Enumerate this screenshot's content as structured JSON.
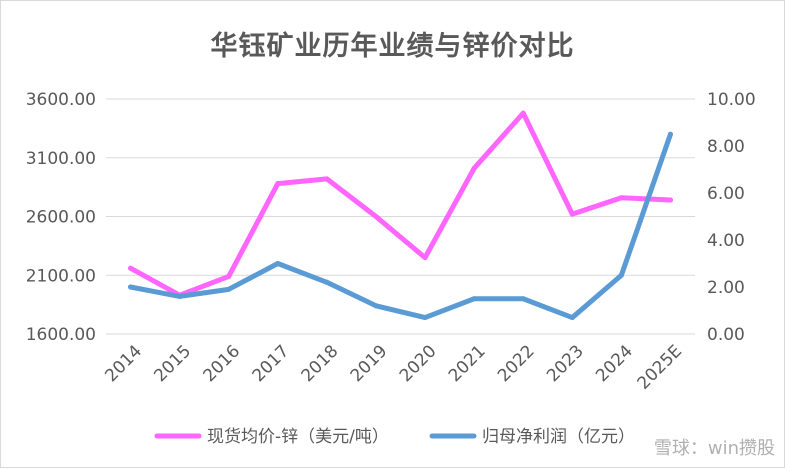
{
  "chart_data": {
    "type": "line",
    "title": "华钰矿业历年业绩与锌价对比",
    "categories": [
      "2014",
      "2015",
      "2016",
      "2017",
      "2018",
      "2019",
      "2020",
      "2021",
      "2022",
      "2023",
      "2024",
      "2025E"
    ],
    "series": [
      {
        "name": "现货均价-锌（美元/吨）",
        "axis": "left",
        "color": "#ff66ff",
        "values": [
          2160,
          1930,
          2090,
          2880,
          2920,
          2600,
          2250,
          3010,
          3480,
          2620,
          2760,
          2740
        ]
      },
      {
        "name": "归母净利润（亿元）",
        "axis": "right",
        "color": "#5b9bd5",
        "values": [
          2.0,
          1.6,
          1.9,
          3.0,
          2.2,
          1.2,
          0.7,
          1.5,
          1.5,
          0.7,
          2.5,
          8.5
        ]
      }
    ],
    "y_left": {
      "min": 1600,
      "max": 3600,
      "ticks": [
        "1600.00",
        "2100.00",
        "2600.00",
        "3100.00",
        "3600.00"
      ]
    },
    "y_right": {
      "min": 0,
      "max": 10,
      "ticks": [
        "0.00",
        "2.00",
        "4.00",
        "6.00",
        "8.00",
        "10.00"
      ]
    },
    "grid": true,
    "legend_position": "bottom"
  },
  "watermark": "雪球：win攒股"
}
